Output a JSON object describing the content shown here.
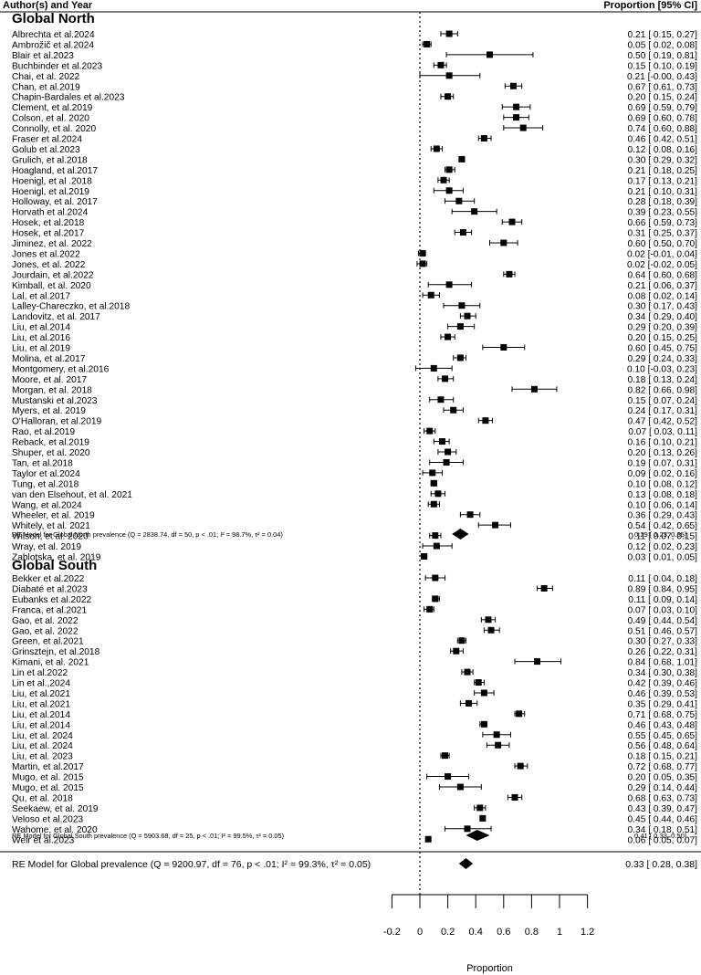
{
  "header": {
    "left": "Author(s) and Year",
    "right": "Proportion [95% CI]"
  },
  "chart_data": {
    "type": "forest",
    "xlabel": "Proportion",
    "xlim": [
      -0.2,
      1.2
    ],
    "ticks": [
      -0.2,
      0,
      0.2,
      0.4,
      0.6,
      0.8,
      1,
      1.2
    ],
    "tick_labels": [
      "-0.2",
      "0",
      "0.2",
      "0.4",
      "0.6",
      "0.8",
      "1",
      "1.2"
    ],
    "reference_line": 0,
    "groups": [
      {
        "name": "Global North",
        "studies": [
          {
            "label": "Albrechta et al.2024",
            "est": 0.21,
            "lo": 0.15,
            "hi": 0.27,
            "text": "0.21 [ 0.15, 0.27]"
          },
          {
            "label": "Ambrožič et al.2024",
            "est": 0.05,
            "lo": 0.02,
            "hi": 0.08,
            "text": "0.05 [ 0.02, 0.08]"
          },
          {
            "label": "Blair et al.2023",
            "est": 0.5,
            "lo": 0.19,
            "hi": 0.81,
            "text": "0.50 [ 0.19, 0.81]"
          },
          {
            "label": "Buchbinder et al.2023",
            "est": 0.15,
            "lo": 0.1,
            "hi": 0.19,
            "text": "0.15 [ 0.10, 0.19]"
          },
          {
            "label": "Chai, et al. 2022",
            "est": 0.21,
            "lo": -0.0,
            "hi": 0.43,
            "text": "0.21 [-0.00, 0.43]"
          },
          {
            "label": "Chan, et al.2019",
            "est": 0.67,
            "lo": 0.61,
            "hi": 0.73,
            "text": "0.67 [ 0.61, 0.73]"
          },
          {
            "label": "Chapin-Bardales et al.2023",
            "est": 0.2,
            "lo": 0.15,
            "hi": 0.24,
            "text": "0.20 [ 0.15, 0.24]"
          },
          {
            "label": "Clement, et al.2019",
            "est": 0.69,
            "lo": 0.59,
            "hi": 0.79,
            "text": "0.69 [ 0.59, 0.79]"
          },
          {
            "label": "Colson, et al. 2020",
            "est": 0.69,
            "lo": 0.6,
            "hi": 0.78,
            "text": "0.69 [ 0.60, 0.78]"
          },
          {
            "label": "Connolly, et al. 2020",
            "est": 0.74,
            "lo": 0.6,
            "hi": 0.88,
            "text": "0.74 [ 0.60, 0.88]"
          },
          {
            "label": "Fraser et al.2024",
            "est": 0.46,
            "lo": 0.42,
            "hi": 0.51,
            "text": "0.46 [ 0.42, 0.51]"
          },
          {
            "label": "Golub et al.2023",
            "est": 0.12,
            "lo": 0.08,
            "hi": 0.16,
            "text": "0.12 [ 0.08, 0.16]"
          },
          {
            "label": "Grulich, et al.2018",
            "est": 0.3,
            "lo": 0.29,
            "hi": 0.32,
            "text": "0.30 [ 0.29, 0.32]"
          },
          {
            "label": "Hoagland, et al.2017",
            "est": 0.21,
            "lo": 0.18,
            "hi": 0.25,
            "text": "0.21 [ 0.18, 0.25]"
          },
          {
            "label": "Hoenigl, et al .2018",
            "est": 0.17,
            "lo": 0.13,
            "hi": 0.21,
            "text": "0.17 [ 0.13, 0.21]"
          },
          {
            "label": "Hoenigl, et al.2019",
            "est": 0.21,
            "lo": 0.1,
            "hi": 0.31,
            "text": "0.21 [ 0.10, 0.31]"
          },
          {
            "label": "Holloway, et al. 2017",
            "est": 0.28,
            "lo": 0.18,
            "hi": 0.39,
            "text": "0.28 [ 0.18, 0.39]"
          },
          {
            "label": "Horvath et al.2024",
            "est": 0.39,
            "lo": 0.23,
            "hi": 0.55,
            "text": "0.39 [ 0.23, 0.55]"
          },
          {
            "label": "Hosek, et al.2018",
            "est": 0.66,
            "lo": 0.59,
            "hi": 0.73,
            "text": "0.66 [ 0.59, 0.73]"
          },
          {
            "label": "Hosek, et al.2017",
            "est": 0.31,
            "lo": 0.25,
            "hi": 0.37,
            "text": "0.31 [ 0.25, 0.37]"
          },
          {
            "label": "Jiminez, et al. 2022",
            "est": 0.6,
            "lo": 0.5,
            "hi": 0.7,
            "text": "0.60 [ 0.50, 0.70]"
          },
          {
            "label": "Jones et al.2022",
            "est": 0.02,
            "lo": -0.01,
            "hi": 0.04,
            "text": "0.02 [-0.01, 0.04]"
          },
          {
            "label": "Jones, et al. 2022",
            "est": 0.02,
            "lo": -0.02,
            "hi": 0.05,
            "text": "0.02 [-0.02, 0.05]"
          },
          {
            "label": "Jourdain, et al.2022",
            "est": 0.64,
            "lo": 0.6,
            "hi": 0.68,
            "text": "0.64 [ 0.60, 0.68]"
          },
          {
            "label": "Kimball, et al. 2020",
            "est": 0.21,
            "lo": 0.06,
            "hi": 0.37,
            "text": "0.21 [ 0.06, 0.37]"
          },
          {
            "label": "Lal, et al.2017",
            "est": 0.08,
            "lo": 0.02,
            "hi": 0.14,
            "text": "0.08 [ 0.02, 0.14]"
          },
          {
            "label": "Lalley-Chareczko, et al.2018",
            "est": 0.3,
            "lo": 0.17,
            "hi": 0.43,
            "text": "0.30 [ 0.17, 0.43]"
          },
          {
            "label": "Landovitz, et al. 2017",
            "est": 0.34,
            "lo": 0.29,
            "hi": 0.4,
            "text": "0.34 [ 0.29, 0.40]"
          },
          {
            "label": "Liu, et al.2014",
            "est": 0.29,
            "lo": 0.2,
            "hi": 0.39,
            "text": "0.29 [ 0.20, 0.39]"
          },
          {
            "label": "Liu, et al.2016",
            "est": 0.2,
            "lo": 0.15,
            "hi": 0.25,
            "text": "0.20 [ 0.15, 0.25]"
          },
          {
            "label": "Liu, et al.2019",
            "est": 0.6,
            "lo": 0.45,
            "hi": 0.75,
            "text": "0.60 [ 0.45, 0.75]"
          },
          {
            "label": "Molina, et al.2017",
            "est": 0.29,
            "lo": 0.24,
            "hi": 0.33,
            "text": "0.29 [ 0.24, 0.33]"
          },
          {
            "label": "Montgomery, et al.2016",
            "est": 0.1,
            "lo": -0.03,
            "hi": 0.23,
            "text": "0.10 [-0.03, 0.23]"
          },
          {
            "label": "Moore, et al. 2017",
            "est": 0.18,
            "lo": 0.13,
            "hi": 0.24,
            "text": "0.18 [ 0.13, 0.24]"
          },
          {
            "label": "Morgan, et al. 2018",
            "est": 0.82,
            "lo": 0.66,
            "hi": 0.98,
            "text": "0.82 [ 0.66, 0.98]"
          },
          {
            "label": "Mustanski et al.2023",
            "est": 0.15,
            "lo": 0.07,
            "hi": 0.24,
            "text": "0.15 [ 0.07, 0.24]"
          },
          {
            "label": "Myers, et al. 2019",
            "est": 0.24,
            "lo": 0.17,
            "hi": 0.31,
            "text": "0.24 [ 0.17, 0.31]"
          },
          {
            "label": "O'Halloran, et al.2019",
            "est": 0.47,
            "lo": 0.42,
            "hi": 0.52,
            "text": "0.47 [ 0.42, 0.52]"
          },
          {
            "label": "Rao, et al.2019",
            "est": 0.07,
            "lo": 0.03,
            "hi": 0.11,
            "text": "0.07 [ 0.03, 0.11]"
          },
          {
            "label": "Reback, et al.2019",
            "est": 0.16,
            "lo": 0.1,
            "hi": 0.21,
            "text": "0.16 [ 0.10, 0.21]"
          },
          {
            "label": "Shuper, et al. 2020",
            "est": 0.2,
            "lo": 0.13,
            "hi": 0.26,
            "text": "0.20 [ 0.13, 0.26]"
          },
          {
            "label": "Tan, et al.2018",
            "est": 0.19,
            "lo": 0.07,
            "hi": 0.31,
            "text": "0.19 [ 0.07, 0.31]"
          },
          {
            "label": "Taylor et al.2024",
            "est": 0.09,
            "lo": 0.02,
            "hi": 0.16,
            "text": "0.09 [ 0.02, 0.16]"
          },
          {
            "label": "Tung, et al.2018",
            "est": 0.1,
            "lo": 0.08,
            "hi": 0.12,
            "text": "0.10 [ 0.08, 0.12]"
          },
          {
            "label": "van den Elsehout, et al. 2021",
            "est": 0.13,
            "lo": 0.08,
            "hi": 0.18,
            "text": "0.13 [ 0.08, 0.18]"
          },
          {
            "label": "Wang, et al.2024",
            "est": 0.1,
            "lo": 0.06,
            "hi": 0.14,
            "text": "0.10 [ 0.06, 0.14]"
          },
          {
            "label": "Wheeler, et al. 2019",
            "est": 0.36,
            "lo": 0.29,
            "hi": 0.43,
            "text": "0.36 [ 0.29, 0.43]"
          },
          {
            "label": "Whitely, et al. 2021",
            "est": 0.54,
            "lo": 0.42,
            "hi": 0.65,
            "text": "0.54 [ 0.42, 0.65]"
          },
          {
            "label": "Wilson, et al. 2020",
            "est": 0.11,
            "lo": 0.07,
            "hi": 0.15,
            "text": "0.11 [ 0.07, 0.15]"
          },
          {
            "label": "Wray, et al. 2019",
            "est": 0.12,
            "lo": 0.02,
            "hi": 0.23,
            "text": "0.12 [ 0.02, 0.23]"
          },
          {
            "label": "Zablotska, et al. 2019",
            "est": 0.03,
            "lo": 0.01,
            "hi": 0.05,
            "text": "0.03 [ 0.01, 0.05]"
          }
        ],
        "summary": {
          "label": "RE Model for Global North prevalence (Q = 2838.74, df = 50, p < .01; I² = 98.7%, τ² = 0.04)",
          "est": 0.29,
          "lo": 0.23,
          "hi": 0.35,
          "text": "0.29 [ 0.23, 0.35]"
        }
      },
      {
        "name": "Global South",
        "studies": [
          {
            "label": "Bekker et al.2022",
            "est": 0.11,
            "lo": 0.04,
            "hi": 0.18,
            "text": "0.11 [ 0.04, 0.18]"
          },
          {
            "label": "Diabaté et al.2023",
            "est": 0.89,
            "lo": 0.84,
            "hi": 0.95,
            "text": "0.89 [ 0.84, 0.95]"
          },
          {
            "label": "Eubanks et al.2022",
            "est": 0.11,
            "lo": 0.09,
            "hi": 0.14,
            "text": "0.11 [ 0.09, 0.14]"
          },
          {
            "label": "Franca, et al.2021",
            "est": 0.07,
            "lo": 0.03,
            "hi": 0.1,
            "text": "0.07 [ 0.03, 0.10]"
          },
          {
            "label": "Gao, et al. 2022",
            "est": 0.49,
            "lo": 0.44,
            "hi": 0.54,
            "text": "0.49 [ 0.44, 0.54]"
          },
          {
            "label": "Gao, et al. 2022",
            "est": 0.51,
            "lo": 0.46,
            "hi": 0.57,
            "text": "0.51 [ 0.46, 0.57]"
          },
          {
            "label": "Green, et al.2021",
            "est": 0.3,
            "lo": 0.27,
            "hi": 0.33,
            "text": "0.30 [ 0.27, 0.33]"
          },
          {
            "label": "Grinsztejn, et al.2018",
            "est": 0.26,
            "lo": 0.22,
            "hi": 0.31,
            "text": "0.26 [ 0.22, 0.31]"
          },
          {
            "label": "Kimani, et al. 2021",
            "est": 0.84,
            "lo": 0.68,
            "hi": 1.01,
            "text": "0.84 [ 0.68, 1.01]"
          },
          {
            "label": "Lin et al.2022",
            "est": 0.34,
            "lo": 0.3,
            "hi": 0.38,
            "text": "0.34 [ 0.30, 0.38]"
          },
          {
            "label": "Lin et al.,2024",
            "est": 0.42,
            "lo": 0.39,
            "hi": 0.46,
            "text": "0.42 [ 0.39, 0.46]"
          },
          {
            "label": "Liu, et al.2021",
            "est": 0.46,
            "lo": 0.39,
            "hi": 0.53,
            "text": "0.46 [ 0.39, 0.53]"
          },
          {
            "label": "Liu, et al.2021",
            "est": 0.35,
            "lo": 0.29,
            "hi": 0.41,
            "text": "0.35 [ 0.29, 0.41]"
          },
          {
            "label": "Liu, et al.2014",
            "est": 0.71,
            "lo": 0.68,
            "hi": 0.75,
            "text": "0.71 [ 0.68, 0.75]"
          },
          {
            "label": "Liu, et al.2014",
            "est": 0.46,
            "lo": 0.43,
            "hi": 0.48,
            "text": "0.46 [ 0.43, 0.48]"
          },
          {
            "label": "Liu, et al. 2024",
            "est": 0.55,
            "lo": 0.45,
            "hi": 0.65,
            "text": "0.55 [ 0.45, 0.65]"
          },
          {
            "label": "Liu, et al. 2024",
            "est": 0.56,
            "lo": 0.48,
            "hi": 0.64,
            "text": "0.56 [ 0.48, 0.64]"
          },
          {
            "label": "Liu, et al. 2023",
            "est": 0.18,
            "lo": 0.15,
            "hi": 0.21,
            "text": "0.18 [ 0.15, 0.21]"
          },
          {
            "label": "Martin, et al.2017",
            "est": 0.72,
            "lo": 0.68,
            "hi": 0.77,
            "text": "0.72 [ 0.68, 0.77]"
          },
          {
            "label": "Mugo, et al. 2015",
            "est": 0.2,
            "lo": 0.05,
            "hi": 0.35,
            "text": "0.20 [ 0.05, 0.35]"
          },
          {
            "label": "Mugo, et al. 2015",
            "est": 0.29,
            "lo": 0.14,
            "hi": 0.44,
            "text": "0.29 [ 0.14, 0.44]"
          },
          {
            "label": "Qu, et al. 2018",
            "est": 0.68,
            "lo": 0.63,
            "hi": 0.73,
            "text": "0.68 [ 0.63, 0.73]"
          },
          {
            "label": "Seekaew, et al. 2019",
            "est": 0.43,
            "lo": 0.39,
            "hi": 0.47,
            "text": "0.43 [ 0.39, 0.47]"
          },
          {
            "label": "Veloso et al.2023",
            "est": 0.45,
            "lo": 0.44,
            "hi": 0.46,
            "text": "0.45 [ 0.44, 0.46]"
          },
          {
            "label": "Wahome, et al. 2020",
            "est": 0.34,
            "lo": 0.18,
            "hi": 0.51,
            "text": "0.34 [ 0.18, 0.51]"
          },
          {
            "label": "Weir et al.2023",
            "est": 0.06,
            "lo": 0.05,
            "hi": 0.07,
            "text": "0.06 [ 0.05, 0.07]"
          }
        ],
        "summary": {
          "label": "RE Model for Global South prevalence (Q = 5903.68, df = 25, p < .01; I² = 99.5%, τ² = 0.05)",
          "est": 0.41,
          "lo": 0.33,
          "hi": 0.5,
          "text": "0.41 [ 0.33, 0.50]"
        }
      }
    ],
    "overall": {
      "label": "RE Model for Global prevalence (Q = 9200.97, df = 76, p < .01; I² = 99.3%, τ² = 0.05)",
      "est": 0.33,
      "lo": 0.28,
      "hi": 0.38,
      "text": "0.33 [ 0.28, 0.38]"
    }
  }
}
